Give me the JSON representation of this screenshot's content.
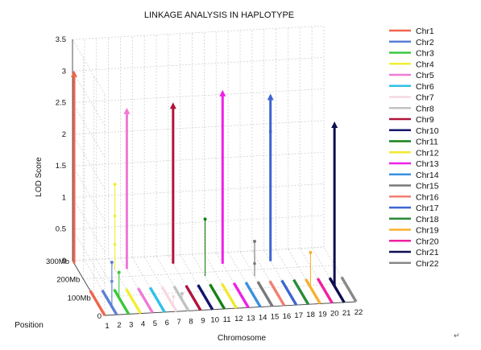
{
  "chart_data": {
    "type": "bar3d",
    "title": "LINKAGE ANALYSIS IN HAPLOTYPE",
    "zlabel": "LOD Score",
    "xlabel": "Chromosome",
    "ylabel": "Position",
    "zlim": [
      0,
      3.5
    ],
    "z_ticks": [
      "0",
      "0.5",
      "1",
      "1.5",
      "2",
      "2.5",
      "3",
      "3.5"
    ],
    "x_ticks": [
      "1",
      "2",
      "3",
      "4",
      "5",
      "6",
      "7",
      "8",
      "9",
      "10",
      "11",
      "12",
      "13",
      "14",
      "15",
      "16",
      "17",
      "18",
      "19",
      "20",
      "21",
      "22"
    ],
    "y_ticks": [
      "0",
      "100Mb",
      "200Mb",
      "300Mb"
    ],
    "grid": true,
    "legend_position": "right",
    "series": [
      {
        "name": "Chr1",
        "color": "#f0654d"
      },
      {
        "name": "Chr2",
        "color": "#5b7fd6"
      },
      {
        "name": "Chr3",
        "color": "#3cc83c"
      },
      {
        "name": "Chr4",
        "color": "#f0ef33"
      },
      {
        "name": "Chr5",
        "color": "#f07ad6"
      },
      {
        "name": "Chr6",
        "color": "#2ec2e8"
      },
      {
        "name": "Chr7",
        "color": "#f7d9e0"
      },
      {
        "name": "Chr8",
        "color": "#c2c2c2"
      },
      {
        "name": "Chr9",
        "color": "#b0143c"
      },
      {
        "name": "Chr10",
        "color": "#14146e"
      },
      {
        "name": "Chr11",
        "color": "#148214"
      },
      {
        "name": "Chr12",
        "color": "#f0e830"
      },
      {
        "name": "Chr13",
        "color": "#f020e6"
      },
      {
        "name": "Chr14",
        "color": "#3a90e0"
      },
      {
        "name": "Chr15",
        "color": "#787878"
      },
      {
        "name": "Chr16",
        "color": "#f08070"
      },
      {
        "name": "Chr17",
        "color": "#3c64d2"
      },
      {
        "name": "Chr18",
        "color": "#2a8a3a"
      },
      {
        "name": "Chr19",
        "color": "#f8b030"
      },
      {
        "name": "Chr20",
        "color": "#f020a0"
      },
      {
        "name": "Chr21",
        "color": "#0e0e50"
      },
      {
        "name": "Chr22",
        "color": "#888888"
      }
    ],
    "stems": [
      {
        "chr": 1,
        "pos": 0.95,
        "lod": 3.0,
        "head": "arrow",
        "dots": [],
        "weight": "thick"
      },
      {
        "chr": 2,
        "pos": 0.15,
        "lod": 0.7,
        "head": "dot",
        "dots": [
          0.4
        ],
        "weight": "thin"
      },
      {
        "chr": 3,
        "pos": 0.3,
        "lod": 0.4,
        "head": "dot",
        "dots": [],
        "weight": "thin"
      },
      {
        "chr": 4,
        "pos": 0.8,
        "lod": 1.35,
        "head": "dot",
        "dots": [
          0.85,
          0.4
        ],
        "weight": "thin"
      },
      {
        "chr": 5,
        "pos": 0.8,
        "lod": 2.5,
        "head": "arrow",
        "dots": [],
        "weight": "thick"
      },
      {
        "chr": 7,
        "pos": 0.1,
        "lod": 0.15,
        "head": "dot",
        "dots": [],
        "weight": "thin"
      },
      {
        "chr": 8,
        "pos": 0.2,
        "lod": 0.1,
        "head": "dot",
        "dots": [],
        "weight": "thin"
      },
      {
        "chr": 9,
        "pos": 0.85,
        "lod": 2.5,
        "head": "arrow",
        "dots": [],
        "weight": "thick"
      },
      {
        "chr": 11,
        "pos": 0.6,
        "lod": 0.9,
        "head": "dot",
        "dots": [],
        "weight": "thin"
      },
      {
        "chr": 13,
        "pos": 0.8,
        "lod": 2.7,
        "head": "arrow",
        "dots": [],
        "weight": "thick"
      },
      {
        "chr": 15,
        "pos": 0.55,
        "lod": 0.55,
        "head": "dot",
        "dots": [
          0.2
        ],
        "weight": "thin"
      },
      {
        "chr": 17,
        "pos": 0.8,
        "lod": 2.6,
        "head": "arrow",
        "dots": [
          2.05
        ],
        "weight": "thick"
      },
      {
        "chr": 19,
        "pos": 0.3,
        "lod": 0.55,
        "head": "dot",
        "dots": [],
        "weight": "thin"
      },
      {
        "chr": 21,
        "pos": 0.3,
        "lod": 2.55,
        "head": "arrow",
        "dots": [],
        "weight": "thick"
      }
    ]
  },
  "footer_mark": "↵"
}
